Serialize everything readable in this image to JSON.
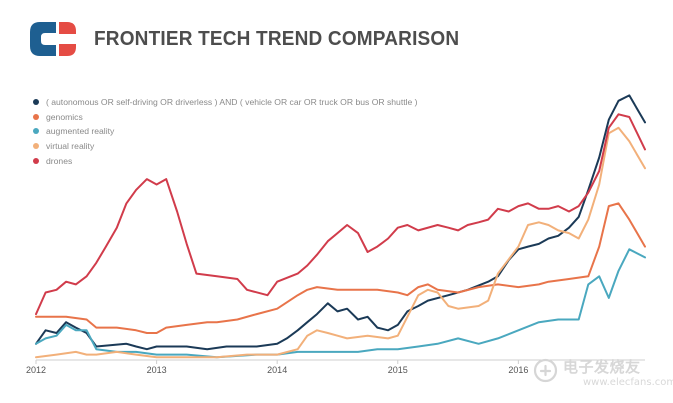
{
  "header": {
    "title": "FRONTIER TECH TREND COMPARISON",
    "logo_colors": {
      "blue": "#1e5f91",
      "red": "#e54c44"
    }
  },
  "watermark": {
    "text": "电子发烧友",
    "subtext": "www.elecfans.com"
  },
  "chart_data": {
    "type": "line",
    "title": "FRONTIER TECH TREND COMPARISON",
    "xlabel": "",
    "ylabel": "",
    "grid": false,
    "legend_position": "top-left",
    "x_ticks": [
      "2012",
      "2013",
      "2014",
      "2015",
      "2016"
    ],
    "x_tick_values": [
      2012,
      2013,
      2014,
      2015,
      2016
    ],
    "xlim": [
      2012,
      2017.05
    ],
    "ylim": [
      0,
      100
    ],
    "series": [
      {
        "name": "( autonomous OR self-driving OR driverless ) AND ( vehicle OR car OR truck OR bus OR shuttle )",
        "color": "#1b3a57",
        "points": [
          [
            2012.0,
            6
          ],
          [
            2012.08,
            11
          ],
          [
            2012.17,
            10
          ],
          [
            2012.25,
            14
          ],
          [
            2012.33,
            12
          ],
          [
            2012.42,
            10
          ],
          [
            2012.5,
            5
          ],
          [
            2012.75,
            6
          ],
          [
            2012.83,
            5
          ],
          [
            2012.92,
            4
          ],
          [
            2013.0,
            5
          ],
          [
            2013.25,
            5
          ],
          [
            2013.42,
            4
          ],
          [
            2013.58,
            5
          ],
          [
            2013.83,
            5
          ],
          [
            2014.0,
            6
          ],
          [
            2014.08,
            8
          ],
          [
            2014.17,
            11
          ],
          [
            2014.25,
            14
          ],
          [
            2014.33,
            17
          ],
          [
            2014.42,
            21
          ],
          [
            2014.5,
            18
          ],
          [
            2014.58,
            19
          ],
          [
            2014.67,
            15
          ],
          [
            2014.75,
            16
          ],
          [
            2014.83,
            12
          ],
          [
            2014.92,
            11
          ],
          [
            2015.0,
            13
          ],
          [
            2015.08,
            18
          ],
          [
            2015.17,
            20
          ],
          [
            2015.25,
            22
          ],
          [
            2015.42,
            24
          ],
          [
            2015.58,
            26
          ],
          [
            2015.75,
            29
          ],
          [
            2015.83,
            31
          ],
          [
            2015.92,
            37
          ],
          [
            2016.0,
            41
          ],
          [
            2016.08,
            42
          ],
          [
            2016.17,
            43
          ],
          [
            2016.25,
            45
          ],
          [
            2016.33,
            46
          ],
          [
            2016.42,
            49
          ],
          [
            2016.5,
            53
          ],
          [
            2016.58,
            63
          ],
          [
            2016.67,
            75
          ],
          [
            2016.75,
            89
          ],
          [
            2016.83,
            96
          ],
          [
            2016.92,
            98
          ],
          [
            2017.05,
            88
          ]
        ]
      },
      {
        "name": "genomics",
        "color": "#e8744a",
        "points": [
          [
            2012.0,
            16
          ],
          [
            2012.17,
            16
          ],
          [
            2012.25,
            16
          ],
          [
            2012.42,
            15
          ],
          [
            2012.5,
            12
          ],
          [
            2012.67,
            12
          ],
          [
            2012.83,
            11
          ],
          [
            2012.92,
            10
          ],
          [
            2013.0,
            10
          ],
          [
            2013.08,
            12
          ],
          [
            2013.25,
            13
          ],
          [
            2013.42,
            14
          ],
          [
            2013.5,
            14
          ],
          [
            2013.67,
            15
          ],
          [
            2013.83,
            17
          ],
          [
            2014.0,
            19
          ],
          [
            2014.17,
            24
          ],
          [
            2014.25,
            26
          ],
          [
            2014.33,
            27
          ],
          [
            2014.5,
            26
          ],
          [
            2014.67,
            26
          ],
          [
            2014.83,
            26
          ],
          [
            2015.0,
            25
          ],
          [
            2015.08,
            24
          ],
          [
            2015.17,
            27
          ],
          [
            2015.25,
            28
          ],
          [
            2015.33,
            26
          ],
          [
            2015.5,
            25
          ],
          [
            2015.67,
            27
          ],
          [
            2015.83,
            28
          ],
          [
            2016.0,
            27
          ],
          [
            2016.17,
            28
          ],
          [
            2016.25,
            29
          ],
          [
            2016.42,
            30
          ],
          [
            2016.58,
            31
          ],
          [
            2016.67,
            42
          ],
          [
            2016.75,
            57
          ],
          [
            2016.83,
            58
          ],
          [
            2016.92,
            52
          ],
          [
            2017.05,
            42
          ]
        ]
      },
      {
        "name": "augmented reality",
        "color": "#4aa8bf",
        "points": [
          [
            2012.0,
            6
          ],
          [
            2012.08,
            8
          ],
          [
            2012.17,
            9
          ],
          [
            2012.25,
            13
          ],
          [
            2012.33,
            11
          ],
          [
            2012.42,
            11
          ],
          [
            2012.5,
            4
          ],
          [
            2012.67,
            3
          ],
          [
            2012.83,
            3
          ],
          [
            2013.0,
            2
          ],
          [
            2013.25,
            2
          ],
          [
            2013.5,
            1
          ],
          [
            2013.83,
            2
          ],
          [
            2014.0,
            2
          ],
          [
            2014.17,
            3
          ],
          [
            2014.33,
            3
          ],
          [
            2014.5,
            3
          ],
          [
            2014.67,
            3
          ],
          [
            2014.83,
            4
          ],
          [
            2015.0,
            4
          ],
          [
            2015.17,
            5
          ],
          [
            2015.33,
            6
          ],
          [
            2015.5,
            8
          ],
          [
            2015.67,
            6
          ],
          [
            2015.83,
            8
          ],
          [
            2016.0,
            11
          ],
          [
            2016.17,
            14
          ],
          [
            2016.33,
            15
          ],
          [
            2016.5,
            15
          ],
          [
            2016.58,
            28
          ],
          [
            2016.67,
            31
          ],
          [
            2016.75,
            23
          ],
          [
            2016.83,
            33
          ],
          [
            2016.92,
            41
          ],
          [
            2017.05,
            38
          ]
        ]
      },
      {
        "name": "virtual reality",
        "color": "#f2b07a",
        "points": [
          [
            2012.0,
            1
          ],
          [
            2012.17,
            2
          ],
          [
            2012.33,
            3
          ],
          [
            2012.42,
            2
          ],
          [
            2012.5,
            2
          ],
          [
            2012.67,
            3
          ],
          [
            2012.83,
            2
          ],
          [
            2013.0,
            1
          ],
          [
            2013.25,
            1
          ],
          [
            2013.5,
            1
          ],
          [
            2013.75,
            2
          ],
          [
            2014.0,
            2
          ],
          [
            2014.17,
            4
          ],
          [
            2014.25,
            9
          ],
          [
            2014.33,
            11
          ],
          [
            2014.42,
            10
          ],
          [
            2014.5,
            9
          ],
          [
            2014.58,
            8
          ],
          [
            2014.75,
            9
          ],
          [
            2014.92,
            8
          ],
          [
            2015.0,
            9
          ],
          [
            2015.08,
            16
          ],
          [
            2015.17,
            24
          ],
          [
            2015.25,
            26
          ],
          [
            2015.33,
            25
          ],
          [
            2015.42,
            20
          ],
          [
            2015.5,
            19
          ],
          [
            2015.67,
            20
          ],
          [
            2015.75,
            22
          ],
          [
            2015.83,
            32
          ],
          [
            2016.0,
            42
          ],
          [
            2016.08,
            50
          ],
          [
            2016.17,
            51
          ],
          [
            2016.25,
            50
          ],
          [
            2016.33,
            48
          ],
          [
            2016.42,
            47
          ],
          [
            2016.5,
            45
          ],
          [
            2016.58,
            52
          ],
          [
            2016.67,
            65
          ],
          [
            2016.75,
            84
          ],
          [
            2016.83,
            86
          ],
          [
            2016.92,
            81
          ],
          [
            2017.05,
            71
          ]
        ]
      },
      {
        "name": "drones",
        "color": "#d13c4b",
        "points": [
          [
            2012.0,
            17
          ],
          [
            2012.08,
            25
          ],
          [
            2012.17,
            26
          ],
          [
            2012.25,
            29
          ],
          [
            2012.33,
            28
          ],
          [
            2012.42,
            31
          ],
          [
            2012.5,
            36
          ],
          [
            2012.58,
            42
          ],
          [
            2012.67,
            49
          ],
          [
            2012.75,
            58
          ],
          [
            2012.83,
            63
          ],
          [
            2012.92,
            67
          ],
          [
            2013.0,
            65
          ],
          [
            2013.08,
            67
          ],
          [
            2013.17,
            55
          ],
          [
            2013.25,
            43
          ],
          [
            2013.33,
            32
          ],
          [
            2013.5,
            31
          ],
          [
            2013.67,
            30
          ],
          [
            2013.75,
            26
          ],
          [
            2013.92,
            24
          ],
          [
            2014.0,
            29
          ],
          [
            2014.17,
            32
          ],
          [
            2014.25,
            35
          ],
          [
            2014.33,
            39
          ],
          [
            2014.42,
            44
          ],
          [
            2014.5,
            47
          ],
          [
            2014.58,
            50
          ],
          [
            2014.67,
            47
          ],
          [
            2014.75,
            40
          ],
          [
            2014.83,
            42
          ],
          [
            2014.92,
            45
          ],
          [
            2015.0,
            49
          ],
          [
            2015.08,
            50
          ],
          [
            2015.17,
            48
          ],
          [
            2015.33,
            50
          ],
          [
            2015.42,
            49
          ],
          [
            2015.5,
            48
          ],
          [
            2015.58,
            50
          ],
          [
            2015.67,
            51
          ],
          [
            2015.75,
            52
          ],
          [
            2015.83,
            56
          ],
          [
            2015.92,
            55
          ],
          [
            2016.0,
            57
          ],
          [
            2016.08,
            58
          ],
          [
            2016.17,
            56
          ],
          [
            2016.25,
            56
          ],
          [
            2016.33,
            57
          ],
          [
            2016.42,
            55
          ],
          [
            2016.5,
            57
          ],
          [
            2016.58,
            62
          ],
          [
            2016.67,
            70
          ],
          [
            2016.75,
            86
          ],
          [
            2016.83,
            91
          ],
          [
            2016.92,
            90
          ],
          [
            2017.05,
            78
          ]
        ]
      }
    ]
  }
}
